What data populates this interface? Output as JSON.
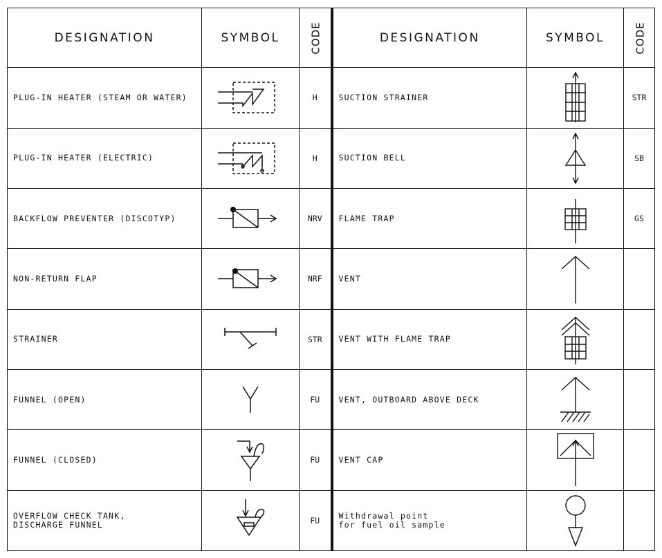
{
  "headers": {
    "designation": "DESIGNATION",
    "symbol": "SYMBOL",
    "code": "CODE"
  },
  "left_rows": [
    {
      "designation": "PLUG-IN HEATER (STEAM OR WATER)",
      "code": "H",
      "symbol": "plug-in-heater-steam-symbol"
    },
    {
      "designation": "PLUG-IN HEATER (ELECTRIC)",
      "code": "H",
      "symbol": "plug-in-heater-electric-symbol"
    },
    {
      "designation": "BACKFLOW PREVENTER (DISCOTYP)",
      "code": "NRV",
      "symbol": "backflow-preventer-symbol"
    },
    {
      "designation": "NON-RETURN FLAP",
      "code": "NRF",
      "symbol": "non-return-flap-symbol"
    },
    {
      "designation": "STRAINER",
      "code": "STR",
      "symbol": "strainer-symbol"
    },
    {
      "designation": "FUNNEL (OPEN)",
      "code": "FU",
      "symbol": "funnel-open-symbol"
    },
    {
      "designation": "FUNNEL (CLOSED)",
      "code": "FU",
      "symbol": "funnel-closed-symbol"
    },
    {
      "designation": "OVERFLOW CHECK TANK,\nDISCHARGE FUNNEL",
      "code": "FU",
      "symbol": "discharge-funnel-symbol"
    }
  ],
  "right_rows": [
    {
      "designation": "SUCTION STRAINER",
      "code": "STR",
      "symbol": "suction-strainer-symbol"
    },
    {
      "designation": "SUCTION BELL",
      "code": "SB",
      "symbol": "suction-bell-symbol"
    },
    {
      "designation": "FLAME TRAP",
      "code": "GS",
      "symbol": "flame-trap-symbol"
    },
    {
      "designation": "VENT",
      "code": "",
      "symbol": "vent-symbol"
    },
    {
      "designation": "VENT WITH FLAME TRAP",
      "code": "",
      "symbol": "vent-flame-trap-symbol"
    },
    {
      "designation": "VENT, OUTBOARD ABOVE DECK",
      "code": "",
      "symbol": "vent-outboard-symbol"
    },
    {
      "designation": "VENT CAP",
      "code": "",
      "symbol": "vent-cap-symbol"
    },
    {
      "designation": "Withdrawal point\nfor fuel oil sample",
      "code": "",
      "symbol": "withdrawal-point-symbol"
    }
  ]
}
